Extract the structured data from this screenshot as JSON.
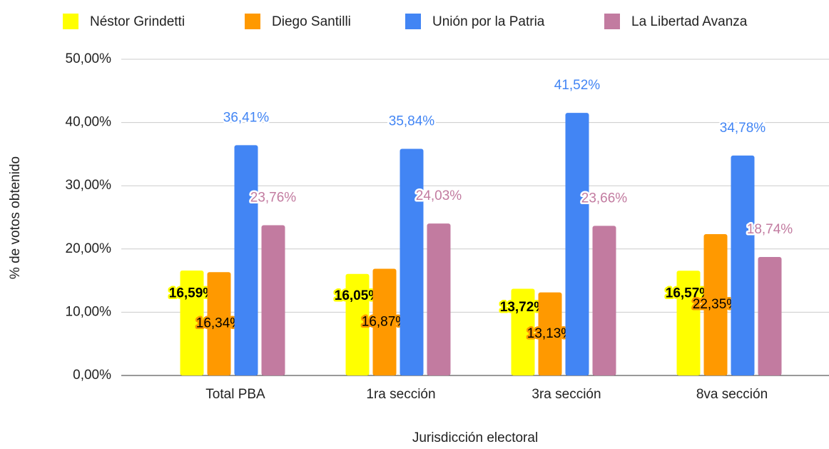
{
  "chart_data": {
    "type": "bar",
    "x_label": "Jurisdicción electoral",
    "y_label": "% de votos obtenido",
    "categories": [
      "Total PBA",
      "1ra sección",
      "3ra sección",
      "8va sección"
    ],
    "series": [
      {
        "name": "Néstor Grindetti",
        "color": "#ffff00",
        "values": [
          16.59,
          16.05,
          13.72,
          16.57
        ],
        "value_labels": [
          "16,59%",
          "16,05%",
          "13,72%",
          "16,57%"
        ]
      },
      {
        "name": "Diego Santilli",
        "color": "#ff9900",
        "values": [
          16.34,
          16.87,
          13.13,
          22.35
        ],
        "value_labels": [
          "16,34%",
          "16,87%",
          "13,13%",
          "22,35%"
        ]
      },
      {
        "name": "Unión por la Patria",
        "color": "#4285f4",
        "values": [
          36.41,
          35.84,
          41.52,
          34.78
        ],
        "value_labels": [
          "36,41%",
          "35,84%",
          "41,52%",
          "34,78%"
        ]
      },
      {
        "name": "La Libertad Avanza",
        "color": "#c27ba0",
        "values": [
          23.76,
          24.03,
          23.66,
          18.74
        ],
        "value_labels": [
          "23,76%",
          "24,03%",
          "23,66%",
          "18,74%"
        ]
      }
    ],
    "ylim": [
      0,
      50
    ],
    "yticks": [
      {
        "value": 0,
        "label": "0,00%"
      },
      {
        "value": 10,
        "label": "10,00%"
      },
      {
        "value": 20,
        "label": "20,00%"
      },
      {
        "value": 30,
        "label": "30,00%"
      },
      {
        "value": 40,
        "label": "40,00%"
      },
      {
        "value": 50,
        "label": "50,00%"
      }
    ],
    "grid": true,
    "legend": "top"
  }
}
